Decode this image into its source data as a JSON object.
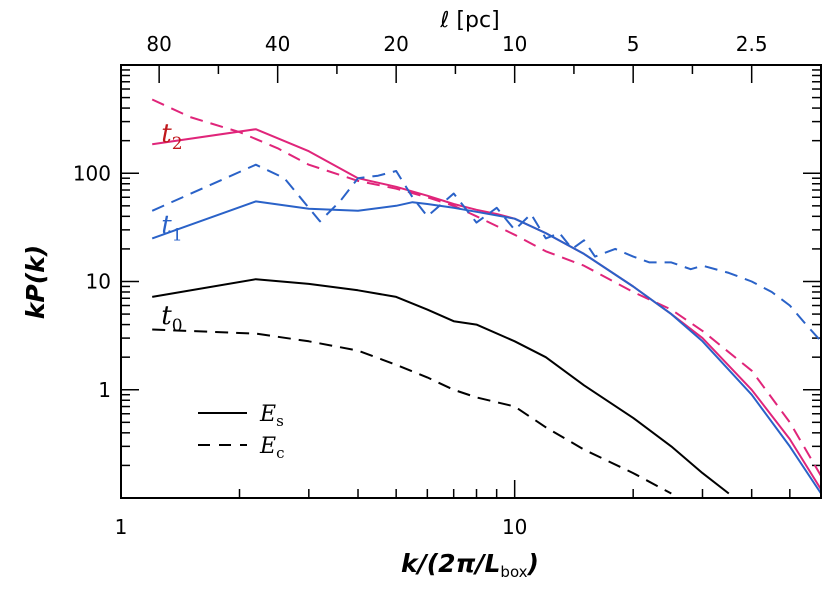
{
  "chart_data": {
    "type": "line",
    "xscale": "log",
    "yscale": "log",
    "xlim": [
      1,
      60
    ],
    "ylim": [
      0.1,
      1000
    ],
    "xlabel": "k/(2π/L",
    "xlabel_sub": "box",
    "xlabel_close": ")",
    "ylabel": "kP(k)",
    "top_axis": {
      "label": "ℓ [pc]",
      "ticks": [
        {
          "k": 1.25,
          "label": "80"
        },
        {
          "k": 2.5,
          "label": "40"
        },
        {
          "k": 5,
          "label": "20"
        },
        {
          "k": 10,
          "label": "10"
        },
        {
          "k": 20,
          "label": "5"
        },
        {
          "k": 40,
          "label": "2.5"
        }
      ]
    },
    "x_ticks": [
      {
        "v": 1,
        "label": "1"
      },
      {
        "v": 10,
        "label": "10"
      }
    ],
    "y_ticks": [
      {
        "v": 1,
        "label": "1"
      },
      {
        "v": 10,
        "label": "10"
      },
      {
        "v": 100,
        "label": "100"
      }
    ],
    "curve_labels": [
      {
        "text": "t",
        "sub": "2",
        "color": "#c0181c",
        "k": 1.18,
        "y": 230
      },
      {
        "text": "t",
        "sub": "1",
        "color": "#2a62c8",
        "k": 1.18,
        "y": 33
      },
      {
        "text": "t",
        "sub": "0",
        "color": "#000000",
        "k": 1.18,
        "y": 4.8
      }
    ],
    "legend": [
      {
        "symbol": "E",
        "sub": "s",
        "style": "solid"
      },
      {
        "symbol": "E",
        "sub": "c",
        "style": "dashed"
      }
    ],
    "series": [
      {
        "name": "t2 E_s",
        "color": "#e0257a",
        "style": "solid",
        "points": [
          [
            1.2,
            185
          ],
          [
            2.2,
            255
          ],
          [
            3,
            160
          ],
          [
            4,
            90
          ],
          [
            5,
            75
          ],
          [
            6,
            62
          ],
          [
            7,
            52
          ],
          [
            8,
            46
          ],
          [
            9,
            42
          ],
          [
            10,
            38
          ],
          [
            12,
            28
          ],
          [
            15,
            18
          ],
          [
            20,
            9
          ],
          [
            25,
            5
          ],
          [
            30,
            3
          ],
          [
            40,
            1
          ],
          [
            50,
            0.35
          ],
          [
            60,
            0.12
          ]
        ]
      },
      {
        "name": "t2 E_c",
        "color": "#e0257a",
        "style": "dashed",
        "points": [
          [
            1.2,
            480
          ],
          [
            1.5,
            330
          ],
          [
            2,
            240
          ],
          [
            2.5,
            170
          ],
          [
            3,
            120
          ],
          [
            4,
            85
          ],
          [
            5,
            72
          ],
          [
            6,
            60
          ],
          [
            7,
            50
          ],
          [
            8,
            40
          ],
          [
            10,
            27
          ],
          [
            12,
            19
          ],
          [
            15,
            14
          ],
          [
            20,
            8
          ],
          [
            25,
            5.5
          ],
          [
            30,
            3.5
          ],
          [
            40,
            1.5
          ],
          [
            50,
            0.5
          ],
          [
            60,
            0.16
          ]
        ]
      },
      {
        "name": "t1 E_s",
        "color": "#2a62c8",
        "style": "solid",
        "points": [
          [
            1.2,
            25
          ],
          [
            2.2,
            55
          ],
          [
            3,
            47
          ],
          [
            4,
            45
          ],
          [
            5,
            50
          ],
          [
            5.5,
            54
          ],
          [
            6,
            52
          ],
          [
            7,
            48
          ],
          [
            8,
            44
          ],
          [
            10,
            38
          ],
          [
            12,
            28
          ],
          [
            15,
            18
          ],
          [
            20,
            9
          ],
          [
            25,
            5
          ],
          [
            30,
            2.8
          ],
          [
            40,
            0.9
          ],
          [
            50,
            0.3
          ],
          [
            60,
            0.11
          ]
        ]
      },
      {
        "name": "t1 E_c",
        "color": "#2a62c8",
        "style": "dashed",
        "points": [
          [
            1.2,
            45
          ],
          [
            2.2,
            120
          ],
          [
            2.6,
            90
          ],
          [
            3.2,
            36
          ],
          [
            3.6,
            55
          ],
          [
            4,
            90
          ],
          [
            4.5,
            95
          ],
          [
            5,
            105
          ],
          [
            5.5,
            60
          ],
          [
            6,
            40
          ],
          [
            7,
            65
          ],
          [
            8,
            35
          ],
          [
            9,
            48
          ],
          [
            10,
            30
          ],
          [
            11,
            42
          ],
          [
            12,
            25
          ],
          [
            13,
            28
          ],
          [
            14,
            20
          ],
          [
            15,
            24
          ],
          [
            16,
            17
          ],
          [
            18,
            20
          ],
          [
            20,
            17
          ],
          [
            22,
            15
          ],
          [
            25,
            15
          ],
          [
            28,
            13
          ],
          [
            30,
            14
          ],
          [
            35,
            12
          ],
          [
            40,
            10
          ],
          [
            45,
            8
          ],
          [
            50,
            6
          ],
          [
            55,
            4
          ],
          [
            60,
            2.8
          ]
        ]
      },
      {
        "name": "t0 E_s",
        "color": "#000000",
        "style": "solid",
        "points": [
          [
            1.2,
            7.2
          ],
          [
            2.2,
            10.5
          ],
          [
            3,
            9.5
          ],
          [
            4,
            8.3
          ],
          [
            5,
            7.2
          ],
          [
            6,
            5.5
          ],
          [
            7,
            4.3
          ],
          [
            8,
            4
          ],
          [
            10,
            2.8
          ],
          [
            12,
            2
          ],
          [
            15,
            1.1
          ],
          [
            20,
            0.55
          ],
          [
            25,
            0.3
          ],
          [
            30,
            0.17
          ],
          [
            35,
            0.11
          ]
        ]
      },
      {
        "name": "t0 E_c",
        "color": "#000000",
        "style": "dashed",
        "points": [
          [
            1.2,
            3.6
          ],
          [
            2.2,
            3.3
          ],
          [
            3,
            2.8
          ],
          [
            4,
            2.3
          ],
          [
            5,
            1.7
          ],
          [
            6,
            1.3
          ],
          [
            7,
            1.0
          ],
          [
            8,
            0.85
          ],
          [
            10,
            0.7
          ],
          [
            12,
            0.45
          ],
          [
            15,
            0.28
          ],
          [
            20,
            0.17
          ],
          [
            25,
            0.11
          ]
        ]
      }
    ]
  }
}
